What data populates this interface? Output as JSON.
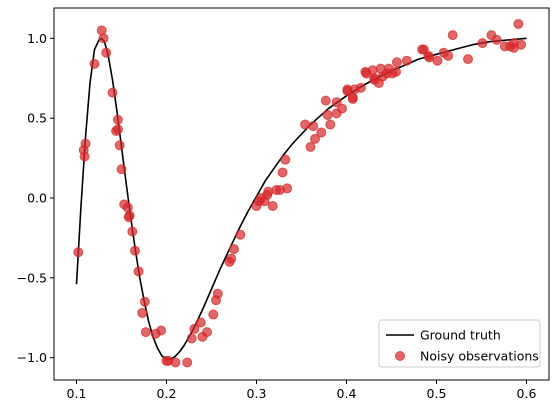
{
  "chart_data": {
    "type": "scatter",
    "title": "",
    "xlabel": "",
    "ylabel": "",
    "xlim": [
      0.075,
      0.625
    ],
    "ylim": [
      -1.14,
      1.19
    ],
    "xticks": [
      0.1,
      0.2,
      0.3,
      0.4,
      0.5,
      0.6
    ],
    "xtick_labels": [
      "0.1",
      "0.2",
      "0.3",
      "0.4",
      "0.5",
      "0.6"
    ],
    "yticks": [
      -1.0,
      -0.5,
      0.0,
      0.5,
      1.0
    ],
    "ytick_labels": [
      "−1.0",
      "−0.5",
      "0.0",
      "0.5",
      "1.0"
    ],
    "grid": false,
    "legend_position": "lower-right",
    "series": [
      {
        "name": "Ground truth",
        "kind": "line",
        "color": "#000000",
        "x": [
          0.1,
          0.105,
          0.11,
          0.115,
          0.12,
          0.125,
          0.128,
          0.131,
          0.135,
          0.14,
          0.145,
          0.15,
          0.155,
          0.16,
          0.165,
          0.17,
          0.175,
          0.18,
          0.185,
          0.19,
          0.195,
          0.2,
          0.205,
          0.21,
          0.215,
          0.22,
          0.23,
          0.24,
          0.25,
          0.26,
          0.27,
          0.28,
          0.29,
          0.3,
          0.31,
          0.32,
          0.33,
          0.34,
          0.35,
          0.36,
          0.37,
          0.38,
          0.39,
          0.4,
          0.42,
          0.44,
          0.46,
          0.48,
          0.5,
          0.52,
          0.54,
          0.56,
          0.58,
          0.6
        ],
        "y": [
          -0.54,
          -0.05,
          0.38,
          0.72,
          0.93,
          0.99,
          1.0,
          0.98,
          0.9,
          0.74,
          0.54,
          0.32,
          0.1,
          -0.11,
          -0.31,
          -0.49,
          -0.64,
          -0.77,
          -0.87,
          -0.94,
          -0.99,
          -1.01,
          -1.01,
          -0.99,
          -0.96,
          -0.92,
          -0.82,
          -0.7,
          -0.57,
          -0.44,
          -0.32,
          -0.2,
          -0.09,
          0.01,
          0.11,
          0.19,
          0.27,
          0.34,
          0.4,
          0.46,
          0.51,
          0.56,
          0.6,
          0.64,
          0.71,
          0.77,
          0.82,
          0.87,
          0.9,
          0.93,
          0.96,
          0.98,
          0.99,
          1.0
        ]
      },
      {
        "name": "Noisy observations",
        "kind": "scatter",
        "color": "#d62728",
        "x": [
          0.102,
          0.108,
          0.109,
          0.11,
          0.12,
          0.128,
          0.13,
          0.133,
          0.14,
          0.144,
          0.146,
          0.146,
          0.148,
          0.15,
          0.153,
          0.157,
          0.158,
          0.159,
          0.162,
          0.165,
          0.169,
          0.173,
          0.176,
          0.177,
          0.188,
          0.194,
          0.2,
          0.202,
          0.21,
          0.223,
          0.228,
          0.231,
          0.238,
          0.24,
          0.245,
          0.252,
          0.255,
          0.257,
          0.27,
          0.272,
          0.275,
          0.282,
          0.3,
          0.303,
          0.305,
          0.309,
          0.312,
          0.313,
          0.318,
          0.322,
          0.326,
          0.329,
          0.332,
          0.334,
          0.354,
          0.36,
          0.363,
          0.365,
          0.372,
          0.377,
          0.379,
          0.382,
          0.389,
          0.389,
          0.395,
          0.401,
          0.401,
          0.407,
          0.407,
          0.409,
          0.416,
          0.421,
          0.422,
          0.429,
          0.431,
          0.431,
          0.436,
          0.438,
          0.44,
          0.445,
          0.447,
          0.451,
          0.455,
          0.456,
          0.467,
          0.484,
          0.486,
          0.491,
          0.492,
          0.501,
          0.508,
          0.513,
          0.518,
          0.535,
          0.551,
          0.561,
          0.567,
          0.576,
          0.582,
          0.586,
          0.586,
          0.591,
          0.594
        ],
        "y": [
          -0.34,
          0.3,
          0.26,
          0.34,
          0.84,
          1.05,
          1.0,
          0.91,
          0.66,
          0.42,
          0.43,
          0.49,
          0.33,
          0.18,
          -0.04,
          -0.06,
          -0.12,
          -0.11,
          -0.21,
          -0.33,
          -0.46,
          -0.72,
          -0.65,
          -0.84,
          -0.85,
          -0.83,
          -1.02,
          -1.02,
          -1.03,
          -1.03,
          -0.88,
          -0.82,
          -0.78,
          -0.87,
          -0.84,
          -0.73,
          -0.64,
          -0.6,
          -0.4,
          -0.38,
          -0.32,
          -0.23,
          -0.05,
          -0.02,
          0.0,
          -0.02,
          0.02,
          0.04,
          -0.05,
          0.05,
          0.05,
          0.16,
          0.24,
          0.06,
          0.46,
          0.32,
          0.45,
          0.37,
          0.41,
          0.61,
          0.52,
          0.46,
          0.6,
          0.53,
          0.56,
          0.67,
          0.68,
          0.62,
          0.63,
          0.68,
          0.69,
          0.79,
          0.78,
          0.8,
          0.74,
          0.75,
          0.72,
          0.81,
          0.76,
          0.78,
          0.81,
          0.78,
          0.79,
          0.85,
          0.86,
          0.93,
          0.93,
          0.89,
          0.88,
          0.86,
          0.91,
          0.89,
          1.02,
          0.87,
          0.97,
          1.02,
          0.99,
          0.95,
          0.95,
          0.94,
          0.97,
          1.09,
          0.96
        ]
      }
    ]
  }
}
